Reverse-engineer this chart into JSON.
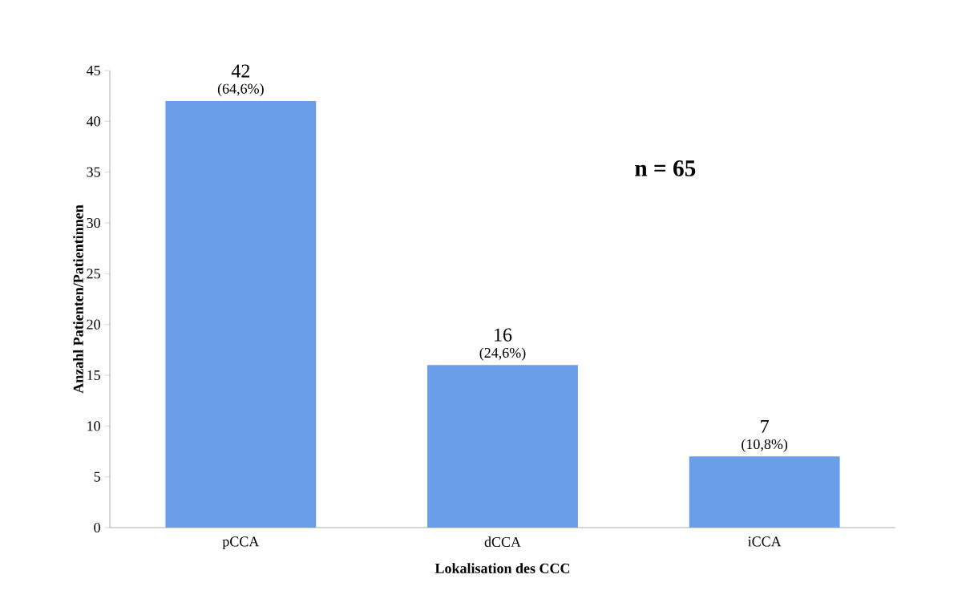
{
  "chart_data": {
    "type": "bar",
    "xlabel": "Lokalisation des CCC",
    "ylabel": "Anzahl  Patienten/Patientinnen",
    "categories": [
      "pCCA",
      "dCCA",
      "iCCA"
    ],
    "values": [
      42,
      16,
      7
    ],
    "color": "#6a9ee8",
    "ylim": [
      0,
      45
    ],
    "yticks": [
      0,
      5,
      10,
      15,
      20,
      25,
      30,
      35,
      40,
      45
    ],
    "data_labels": true,
    "annotations": [
      {
        "text": "(64,6%)",
        "x": "pCCA",
        "y": 42
      },
      {
        "text": "(24,6%)",
        "x": "dCCA",
        "y": 16
      },
      {
        "text": "(10,8%)",
        "x": "iCCA",
        "y": 7
      },
      "n = 65"
    ],
    "grid": false
  }
}
